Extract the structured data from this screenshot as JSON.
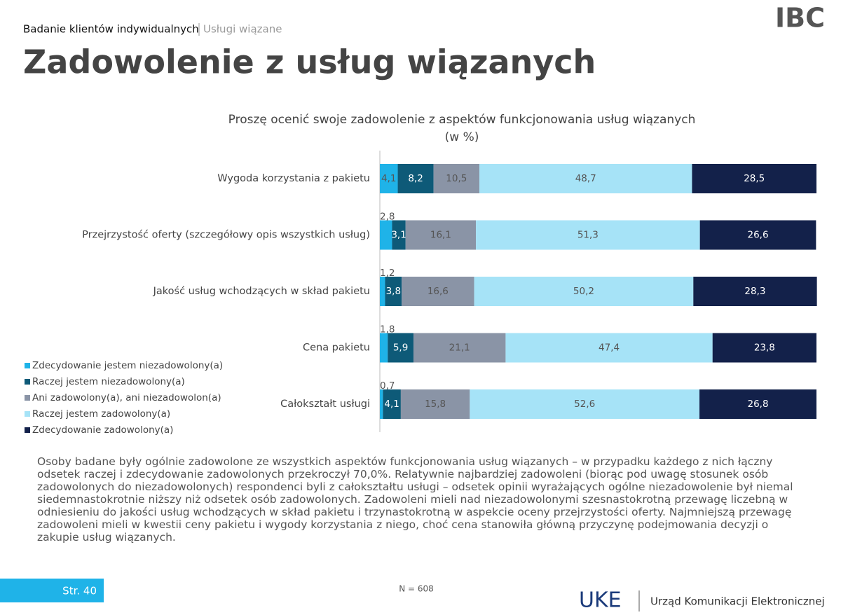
{
  "header": {
    "section": "Badanie klientów indywidualnych",
    "subsection": "Usługi wiązane",
    "logo": "IBC"
  },
  "title": "Zadowolenie z usług wiązanych",
  "chart_data": {
    "type": "stacked-bar-horizontal",
    "title": "Proszę ocenić swoje zadowolenie z aspektów funkcjonowania usług wiązanych",
    "subtitle": "(w %)",
    "categories": [
      "Wygoda korzystania z pakietu",
      "Przejrzystość oferty (szczegółowy opis wszystkich usług)",
      "Jakość usług wchodzących w skład pakietu",
      "Cena pakietu",
      "Całokształt usługi"
    ],
    "xlim": [
      0,
      100
    ],
    "series": [
      {
        "name": "Zdecydowanie jestem niezadowolony(a)",
        "color": "#1fb3e8",
        "values": [
          4.1,
          2.8,
          1.2,
          1.8,
          0.7
        ],
        "value_labels": [
          "4,1",
          "2,8",
          "1,2",
          "1,8",
          "0,7"
        ]
      },
      {
        "name": "Raczej jestem niezadowolony(a)",
        "color": "#0e5a78",
        "values": [
          8.2,
          3.1,
          3.8,
          5.9,
          4.1
        ],
        "value_labels": [
          "8,2",
          "3,1",
          "3,8",
          "5,9",
          "4,1"
        ]
      },
      {
        "name": "Ani zadowolony(a), ani niezadowolon(a)",
        "color": "#8a94a6",
        "values": [
          10.5,
          16.1,
          16.6,
          21.1,
          15.8
        ],
        "value_labels": [
          "10,5",
          "16,1",
          "16,6",
          "21,1",
          "15,8"
        ]
      },
      {
        "name": "Raczej jestem zadowolony(a)",
        "color": "#a6e3f7",
        "values": [
          48.7,
          51.3,
          50.2,
          47.4,
          52.6
        ],
        "value_labels": [
          "48,7",
          "51,3",
          "50,2",
          "47,4",
          "52,6"
        ]
      },
      {
        "name": "Zdecydowanie zadowolony(a)",
        "color": "#13214a",
        "values": [
          28.5,
          26.6,
          28.3,
          23.8,
          26.8
        ],
        "value_labels": [
          "28,5",
          "26,6",
          "28,3",
          "23,8",
          "26,8"
        ]
      }
    ]
  },
  "description": "Osoby badane były ogólnie zadowolone ze wszystkich aspektów funkcjonowania usług wiązanych – w przypadku każdego z nich łączny odsetek raczej i zdecydowanie zadowolonych przekroczył 70,0%. Relatywnie najbardziej zadowoleni (biorąc pod uwagę stosunek osób zadowolonych do niezadowolonych) respondenci byli z całokształtu usługi – odsetek opinii wyrażających ogólne niezadowolenie był niemal siedemnastokrotnie niższy niż odsetek osób zadowolonych. Zadowoleni mieli nad niezadowolonymi szesnastokrotną przewagę liczebną w odniesieniu do jakości usług wchodzących w skład pakietu i trzynastokrotną w aspekcie oceny przejrzystości oferty. Najmniejszą przewagę zadowoleni mieli w kwestii ceny pakietu i wygody korzystania z niego, choć cena stanowiła główną przyczynę podejmowania decyzji o zakupie usług wiązanych.",
  "footer": {
    "page": "Str. 40",
    "sample": "N = 608",
    "logo": "UKE",
    "institution": "Urząd Komunikacji Elektronicznej"
  }
}
